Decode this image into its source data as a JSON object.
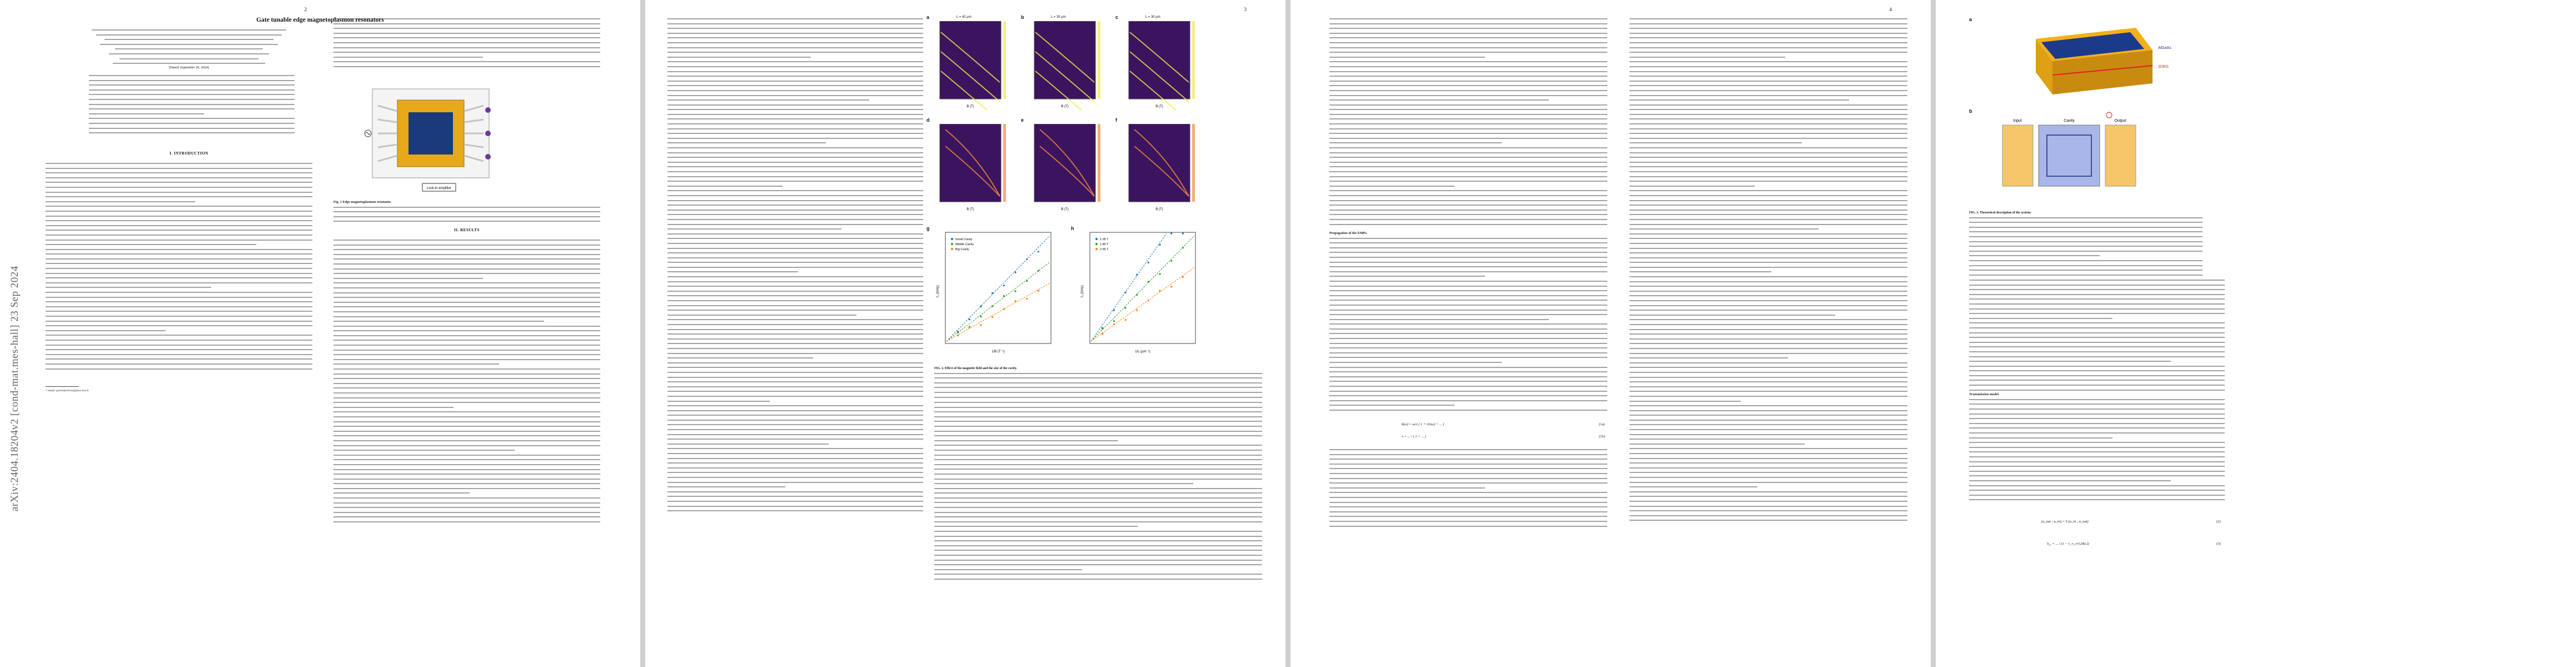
{
  "arxiv_id": "arXiv:2404.18204v2  [cond-mat.mes-hall]  23 Sep 2024",
  "page_numbers": [
    "2",
    "3",
    "4"
  ],
  "page1": {
    "title": "Gate tunable edge magnetoplasmon resonators",
    "date": "(Dated: September 26, 2024)",
    "section_intro": "I.   INTRODUCTION",
    "footnote": "* email: gwendal.feve@phys.ens.fr"
  },
  "page2": {
    "section_results": "II.   RESULTS",
    "fig1_caption_label": "Fig. 1",
    "fig1_caption_title": "Edge magnetoplasmon resonator.",
    "legend_device": "Lock-in amplifier"
  },
  "page3": {
    "panels": {
      "a": {
        "label": "a",
        "title": "L = 42 µm"
      },
      "b": {
        "label": "b",
        "title": "L = 35 µm"
      },
      "c": {
        "label": "c",
        "title": "L = 30 µm"
      },
      "d": {
        "label": "d"
      },
      "e": {
        "label": "e"
      },
      "f": {
        "label": "f"
      },
      "g": {
        "label": "g"
      },
      "h": {
        "label": "h"
      }
    },
    "axis_b_T": "B (T)",
    "axis_freq": "Frequency (GHz)",
    "axis_f": "f₀ (GHz)",
    "axis_inv_B": "1/B (T⁻¹)",
    "axis_inv_L": "1/L (µm⁻¹)",
    "legend_g": [
      "Small Cavity",
      "Middle Cavity",
      "Big Cavity"
    ],
    "legend_h": [
      "1.05 T",
      "1.80 T",
      "2.55 T"
    ],
    "fig2_caption_label": "FIG. 2.",
    "fig2_caption_title": "Effect of the magnetic field and the size of the cavity.",
    "colors": {
      "purple": "#3b1460",
      "blue": "#1f77b4",
      "green": "#2ca02c",
      "orange": "#ff7f0e"
    }
  },
  "page4": {
    "para_head_emp": "Propagation of the EMPs.",
    "para_head_tl": "Transmission model.",
    "fig3_labels": {
      "a": "a",
      "b": "b",
      "algaas": "AlGaAs",
      "deg": "2DEG",
      "input": "Input",
      "cavity": "Cavity",
      "output": "Output"
    },
    "fig3_caption_label": "FIG. 3.",
    "fig3_caption_title": "Theoretical description of the system:",
    "eq_numbers": [
      "(1a)",
      "(1b)",
      "(2)",
      "(3)"
    ]
  }
}
